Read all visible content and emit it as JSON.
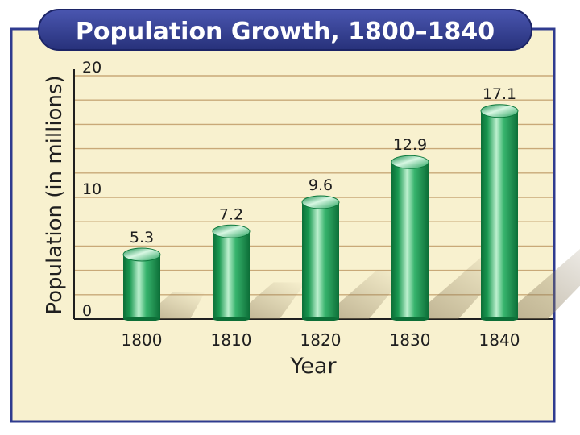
{
  "chart_data": {
    "type": "bar",
    "title": "Population Growth, 1800–1840",
    "xlabel": "Year",
    "ylabel": "Population (in millions)",
    "categories": [
      "1800",
      "1810",
      "1820",
      "1830",
      "1840"
    ],
    "values": [
      5.3,
      7.2,
      9.6,
      12.9,
      17.1
    ],
    "data_labels": [
      "5.3",
      "7.2",
      "9.6",
      "12.9",
      "17.1"
    ],
    "ylim": [
      0,
      20
    ],
    "yticks": [
      0,
      10,
      20
    ],
    "ytick_labels": [
      "0",
      "10",
      "20"
    ],
    "grid": true,
    "grid_step": 2
  },
  "colors": {
    "background": "#f8f1cf",
    "frame": "#2f3b8f",
    "title_fill": "#2f3b8f",
    "title_text": "#ffffff",
    "grid": "#c9a978",
    "bar_dark": "#0e7a3e",
    "bar_light": "#bdf0cf"
  }
}
